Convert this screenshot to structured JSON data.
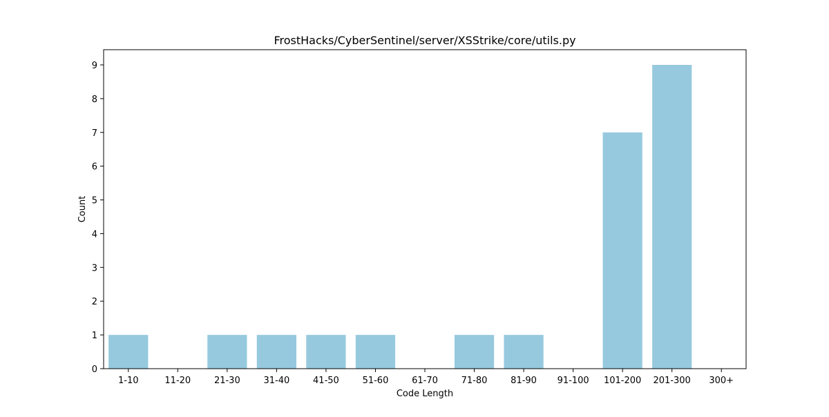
{
  "chart_data": {
    "type": "bar",
    "title": "FrostHacks/CyberSentinel/server/XSStrike/core/utils.py",
    "xlabel": "Code Length",
    "ylabel": "Count",
    "categories": [
      "1-10",
      "11-20",
      "21-30",
      "31-40",
      "41-50",
      "51-60",
      "61-70",
      "71-80",
      "81-90",
      "91-100",
      "101-200",
      "201-300",
      "300+"
    ],
    "values": [
      1,
      0,
      1,
      1,
      1,
      1,
      0,
      1,
      1,
      0,
      7,
      9,
      0
    ],
    "ylim": [
      0,
      9.45
    ],
    "yticks": [
      0,
      1,
      2,
      3,
      4,
      5,
      6,
      7,
      8,
      9
    ],
    "bar_color": "#96c9de",
    "grid": false,
    "legend": "none"
  }
}
